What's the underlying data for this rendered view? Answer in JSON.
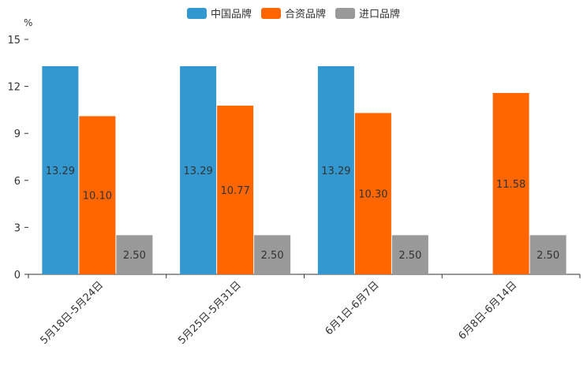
{
  "chart_data": {
    "type": "bar",
    "title": "",
    "unit": "%",
    "categories": [
      "5月18日-5月24日",
      "5月25日-5月31日",
      "6月1日-6月7日",
      "6月8日-6月14日"
    ],
    "series": [
      {
        "name": "中国品牌",
        "color": "#3398D0",
        "values": [
          13.29,
          13.29,
          13.29,
          null
        ],
        "labels": [
          "13.29",
          "13.29",
          "13.29",
          ""
        ]
      },
      {
        "name": "合资品牌",
        "color": "#FF6600",
        "values": [
          10.1,
          10.77,
          10.3,
          11.58
        ],
        "labels": [
          "10.10",
          "10.77",
          "10.30",
          "11.58"
        ]
      },
      {
        "name": "进口品牌",
        "color": "#999999",
        "values": [
          2.5,
          2.5,
          2.5,
          2.5
        ],
        "labels": [
          "2.50",
          "2.50",
          "2.50",
          "2.50"
        ]
      }
    ],
    "ylim": [
      0,
      15
    ],
    "yticks": [
      0,
      3,
      6,
      9,
      12,
      15
    ],
    "xlabel": "",
    "ylabel": "%",
    "legend_position": "top-center",
    "grid": false
  }
}
